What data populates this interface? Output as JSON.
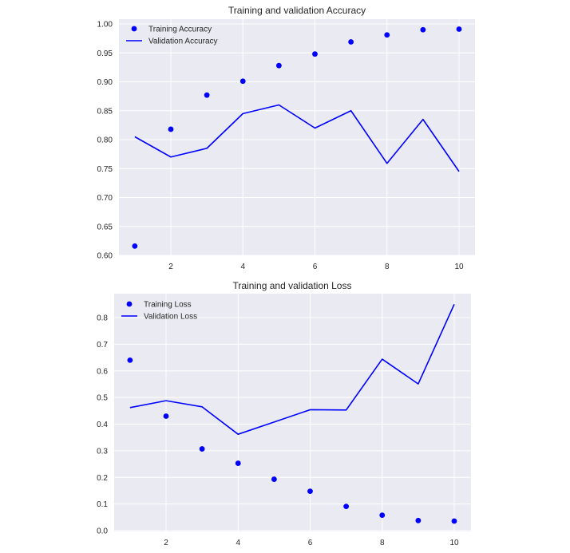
{
  "chart_data": [
    {
      "type": "line",
      "title": "Training and validation Accuracy",
      "xlabel": "",
      "ylabel": "",
      "x": [
        1,
        2,
        3,
        4,
        5,
        6,
        7,
        8,
        9,
        10
      ],
      "xticks": [
        "2",
        "4",
        "6",
        "8",
        "10"
      ],
      "yticks": [
        "0.60",
        "0.65",
        "0.70",
        "0.75",
        "0.80",
        "0.85",
        "0.90",
        "0.95",
        "1.00"
      ],
      "ylim": [
        0.6,
        1.0
      ],
      "xlim": [
        1,
        10
      ],
      "grid": true,
      "legend_position": "top-left",
      "series": [
        {
          "name": "Training Accuracy",
          "style": "points",
          "color": "#0000ff",
          "values": [
            0.616,
            0.818,
            0.877,
            0.901,
            0.928,
            0.948,
            0.969,
            0.981,
            0.99,
            0.991
          ]
        },
        {
          "name": "Validation Accuracy",
          "style": "line",
          "color": "#0000ff",
          "values": [
            0.805,
            0.77,
            0.785,
            0.845,
            0.86,
            0.82,
            0.85,
            0.759,
            0.835,
            0.745
          ]
        }
      ]
    },
    {
      "type": "line",
      "title": "Training and validation Loss",
      "xlabel": "",
      "ylabel": "",
      "x": [
        1,
        2,
        3,
        4,
        5,
        6,
        7,
        8,
        9,
        10
      ],
      "xticks": [
        "2",
        "4",
        "6",
        "8",
        "10"
      ],
      "yticks": [
        "0.0",
        "0.1",
        "0.2",
        "0.3",
        "0.4",
        "0.5",
        "0.6",
        "0.7",
        "0.8"
      ],
      "ylim": [
        0.0,
        0.8
      ],
      "xlim": [
        1,
        10
      ],
      "grid": true,
      "legend_position": "top-left",
      "series": [
        {
          "name": "Training Loss",
          "style": "points",
          "color": "#0000ff",
          "values": [
            0.64,
            0.43,
            0.307,
            0.253,
            0.193,
            0.148,
            0.091,
            0.058,
            0.038,
            0.036
          ]
        },
        {
          "name": "Validation Loss",
          "style": "line",
          "color": "#0000ff",
          "values": [
            0.462,
            0.488,
            0.465,
            0.362,
            0.408,
            0.454,
            0.453,
            0.644,
            0.551,
            0.85
          ]
        }
      ]
    }
  ],
  "colors": {
    "plot_background": "#eaeaf2",
    "grid": "#ffffff",
    "text": "#262626",
    "series": "#0000ff"
  }
}
